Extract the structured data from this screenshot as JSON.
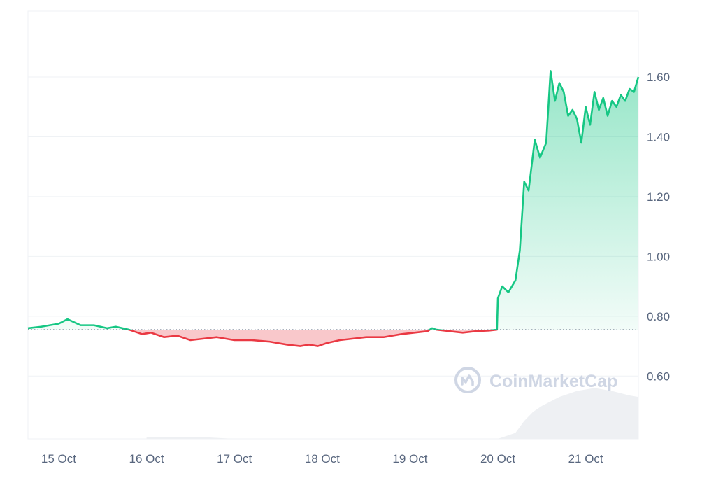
{
  "chart_data": {
    "type": "line",
    "title": "",
    "xlabel": "",
    "ylabel": "",
    "x_ticks": [
      "15 Oct",
      "16 Oct",
      "17 Oct",
      "18 Oct",
      "19 Oct",
      "20 Oct",
      "21 Oct"
    ],
    "y_ticks": [
      "0.60",
      "0.80",
      "1.00",
      "1.20",
      "1.40",
      "1.60"
    ],
    "y_tick_values": [
      0.6,
      0.8,
      1.0,
      1.2,
      1.4,
      1.6
    ],
    "ylim": [
      0.39,
      1.82
    ],
    "xlim_days": [
      14.65,
      21.6
    ],
    "baseline": 0.755,
    "series": [
      {
        "x": [
          14.65,
          14.8,
          15.0,
          15.1,
          15.25,
          15.4,
          15.55,
          15.65,
          15.8,
          15.95,
          16.05,
          16.2,
          16.35,
          16.5,
          16.65,
          16.8,
          17.0,
          17.2,
          17.4,
          17.6,
          17.75,
          17.85,
          17.95,
          18.05,
          18.2,
          18.35,
          18.5,
          18.7,
          18.9,
          19.05,
          19.2,
          19.25,
          19.3,
          19.45,
          19.6,
          19.75,
          19.9,
          19.99,
          20.0,
          20.05,
          20.12,
          20.2,
          20.25,
          20.3,
          20.35,
          20.42,
          20.48,
          20.55,
          20.6,
          20.65,
          20.7,
          20.75,
          20.8,
          20.85,
          20.9,
          20.95,
          21.0,
          21.05,
          21.1,
          21.15,
          21.2,
          21.25,
          21.3,
          21.35,
          21.4,
          21.45,
          21.5,
          21.55,
          21.6
        ],
        "y": [
          0.76,
          0.765,
          0.775,
          0.79,
          0.77,
          0.77,
          0.76,
          0.765,
          0.755,
          0.74,
          0.745,
          0.73,
          0.735,
          0.72,
          0.725,
          0.73,
          0.72,
          0.72,
          0.715,
          0.705,
          0.7,
          0.705,
          0.7,
          0.71,
          0.72,
          0.725,
          0.73,
          0.73,
          0.74,
          0.745,
          0.75,
          0.76,
          0.755,
          0.75,
          0.745,
          0.75,
          0.752,
          0.755,
          0.86,
          0.9,
          0.88,
          0.92,
          1.02,
          1.25,
          1.22,
          1.39,
          1.33,
          1.38,
          1.62,
          1.52,
          1.58,
          1.55,
          1.47,
          1.49,
          1.46,
          1.38,
          1.5,
          1.44,
          1.55,
          1.49,
          1.53,
          1.47,
          1.52,
          1.5,
          1.54,
          1.52,
          1.56,
          1.55,
          1.6
        ]
      }
    ],
    "volume": {
      "x": [
        16.0,
        16.7,
        17.0,
        17.5,
        18.0,
        18.5,
        19.0,
        19.5,
        20.0,
        20.2,
        20.3,
        20.4,
        20.5,
        20.7,
        20.9,
        21.1,
        21.3,
        21.5,
        21.6
      ],
      "y": [
        0.395,
        0.395,
        0.39,
        0.39,
        0.39,
        0.39,
        0.39,
        0.39,
        0.39,
        0.41,
        0.45,
        0.48,
        0.5,
        0.53,
        0.55,
        0.56,
        0.55,
        0.535,
        0.53
      ]
    },
    "up_color": "#16c784",
    "down_color": "#ea3943",
    "grid": true
  },
  "watermark": {
    "text": "CoinMarketCap",
    "icon": "coinmarketcap-logo-icon"
  }
}
